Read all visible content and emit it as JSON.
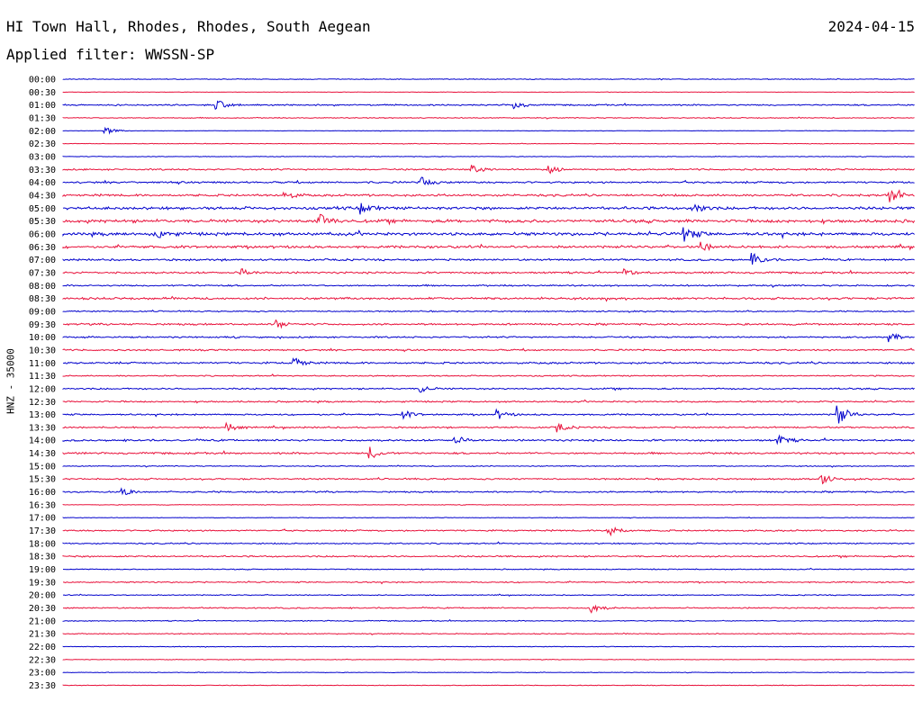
{
  "header": {
    "station": "HI Town Hall, Rhodes, Rhodes, South Aegean",
    "date": "2024-04-15",
    "filter": "Applied filter: WWSSN-SP"
  },
  "colors": {
    "even_row": "#0000cc",
    "odd_row": "#e8103a",
    "text": "#000000"
  },
  "chart_data": {
    "type": "line",
    "title": "HI Town Hall, Rhodes, Rhodes, South Aegean",
    "subtitle": "Applied filter: WWSSN-SP",
    "ylabel": "HNZ - 35000",
    "xlabel": "",
    "row_labels": [
      "00:00",
      "00:30",
      "01:00",
      "01:30",
      "02:00",
      "02:30",
      "03:00",
      "03:30",
      "04:00",
      "04:30",
      "05:00",
      "05:30",
      "06:00",
      "06:30",
      "07:00",
      "07:30",
      "08:00",
      "08:30",
      "09:00",
      "09:30",
      "10:00",
      "10:30",
      "11:00",
      "11:30",
      "12:00",
      "12:30",
      "13:00",
      "13:30",
      "14:00",
      "14:30",
      "15:00",
      "15:30",
      "16:00",
      "16:30",
      "17:00",
      "17:30",
      "18:00",
      "18:30",
      "19:00",
      "19:30",
      "20:00",
      "20:30",
      "21:00",
      "21:30",
      "22:00",
      "22:30",
      "23:00",
      "23:30"
    ],
    "row_noise": [
      0.25,
      0.15,
      0.45,
      0.3,
      0.15,
      0.2,
      0.2,
      0.5,
      0.6,
      0.7,
      0.9,
      1.0,
      1.0,
      0.8,
      0.6,
      0.6,
      0.5,
      0.7,
      0.4,
      0.6,
      0.5,
      0.5,
      0.6,
      0.4,
      0.5,
      0.5,
      0.5,
      0.5,
      0.6,
      0.6,
      0.3,
      0.5,
      0.5,
      0.2,
      0.2,
      0.5,
      0.4,
      0.5,
      0.3,
      0.4,
      0.3,
      0.4,
      0.3,
      0.3,
      0.2,
      0.2,
      0.2,
      0.2
    ],
    "events": [
      {
        "row": 2,
        "t": 0.18,
        "amp": 6
      },
      {
        "row": 2,
        "t": 0.53,
        "amp": 4
      },
      {
        "row": 4,
        "t": 0.05,
        "amp": 4
      },
      {
        "row": 7,
        "t": 0.48,
        "amp": 5
      },
      {
        "row": 7,
        "t": 0.57,
        "amp": 5
      },
      {
        "row": 8,
        "t": 0.42,
        "amp": 6
      },
      {
        "row": 9,
        "t": 0.26,
        "amp": 5
      },
      {
        "row": 9,
        "t": 0.97,
        "amp": 9
      },
      {
        "row": 10,
        "t": 0.35,
        "amp": 6
      },
      {
        "row": 10,
        "t": 0.74,
        "amp": 6
      },
      {
        "row": 11,
        "t": 0.3,
        "amp": 9
      },
      {
        "row": 12,
        "t": 0.73,
        "amp": 9
      },
      {
        "row": 12,
        "t": 0.11,
        "amp": 5
      },
      {
        "row": 13,
        "t": 0.75,
        "amp": 5
      },
      {
        "row": 14,
        "t": 0.81,
        "amp": 7
      },
      {
        "row": 15,
        "t": 0.21,
        "amp": 4
      },
      {
        "row": 15,
        "t": 0.66,
        "amp": 4
      },
      {
        "row": 19,
        "t": 0.25,
        "amp": 5
      },
      {
        "row": 20,
        "t": 0.97,
        "amp": 5
      },
      {
        "row": 22,
        "t": 0.27,
        "amp": 7
      },
      {
        "row": 24,
        "t": 0.42,
        "amp": 4
      },
      {
        "row": 26,
        "t": 0.91,
        "amp": 12
      },
      {
        "row": 26,
        "t": 0.4,
        "amp": 4
      },
      {
        "row": 26,
        "t": 0.51,
        "amp": 5
      },
      {
        "row": 27,
        "t": 0.19,
        "amp": 6
      },
      {
        "row": 27,
        "t": 0.58,
        "amp": 5
      },
      {
        "row": 28,
        "t": 0.46,
        "amp": 5
      },
      {
        "row": 28,
        "t": 0.84,
        "amp": 5
      },
      {
        "row": 29,
        "t": 0.36,
        "amp": 7
      },
      {
        "row": 31,
        "t": 0.89,
        "amp": 6
      },
      {
        "row": 32,
        "t": 0.07,
        "amp": 4
      },
      {
        "row": 35,
        "t": 0.64,
        "amp": 8
      },
      {
        "row": 41,
        "t": 0.62,
        "amp": 6
      }
    ]
  }
}
